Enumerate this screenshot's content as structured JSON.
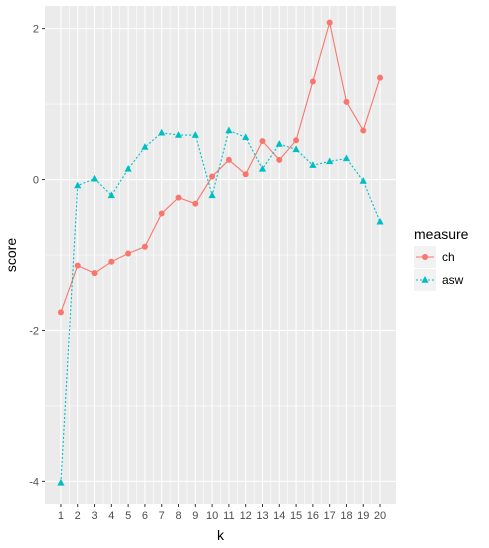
{
  "chart_data": {
    "type": "line",
    "xlabel": "k",
    "ylabel": "score",
    "x": [
      1,
      2,
      3,
      4,
      5,
      6,
      7,
      8,
      9,
      10,
      11,
      12,
      13,
      14,
      15,
      16,
      17,
      18,
      19,
      20
    ],
    "x_tick_labels": [
      "1",
      "2",
      "3",
      "4",
      "5",
      "6",
      "7",
      "8",
      "9",
      "10",
      "11",
      "12",
      "13",
      "14",
      "15",
      "16",
      "17",
      "18",
      "19",
      "20"
    ],
    "y_tick_values": [
      -4,
      -2,
      0,
      2
    ],
    "y_tick_labels": [
      "-4",
      "-2",
      "0",
      "2"
    ],
    "ylim": [
      -4.3,
      2.3
    ],
    "xlim": [
      0.05,
      20.95
    ],
    "grid": true,
    "legend": {
      "title": "measure",
      "position": "right"
    },
    "series": [
      {
        "name": "ch",
        "color": "#F8766D",
        "linestyle": "solid",
        "marker": "circle",
        "values": [
          -1.76,
          -1.14,
          -1.24,
          -1.09,
          -0.98,
          -0.89,
          -0.45,
          -0.24,
          -0.32,
          0.04,
          0.26,
          0.07,
          0.51,
          0.26,
          0.52,
          1.3,
          2.08,
          1.03,
          0.65,
          1.35
        ]
      },
      {
        "name": "asw",
        "color": "#00BFC4",
        "linestyle": "dotted",
        "marker": "triangle",
        "values": [
          -4.02,
          -0.08,
          0.01,
          -0.21,
          0.14,
          0.43,
          0.62,
          0.59,
          0.59,
          -0.21,
          0.65,
          0.56,
          0.14,
          0.47,
          0.4,
          0.19,
          0.24,
          0.28,
          -0.02,
          -0.56
        ]
      }
    ]
  }
}
